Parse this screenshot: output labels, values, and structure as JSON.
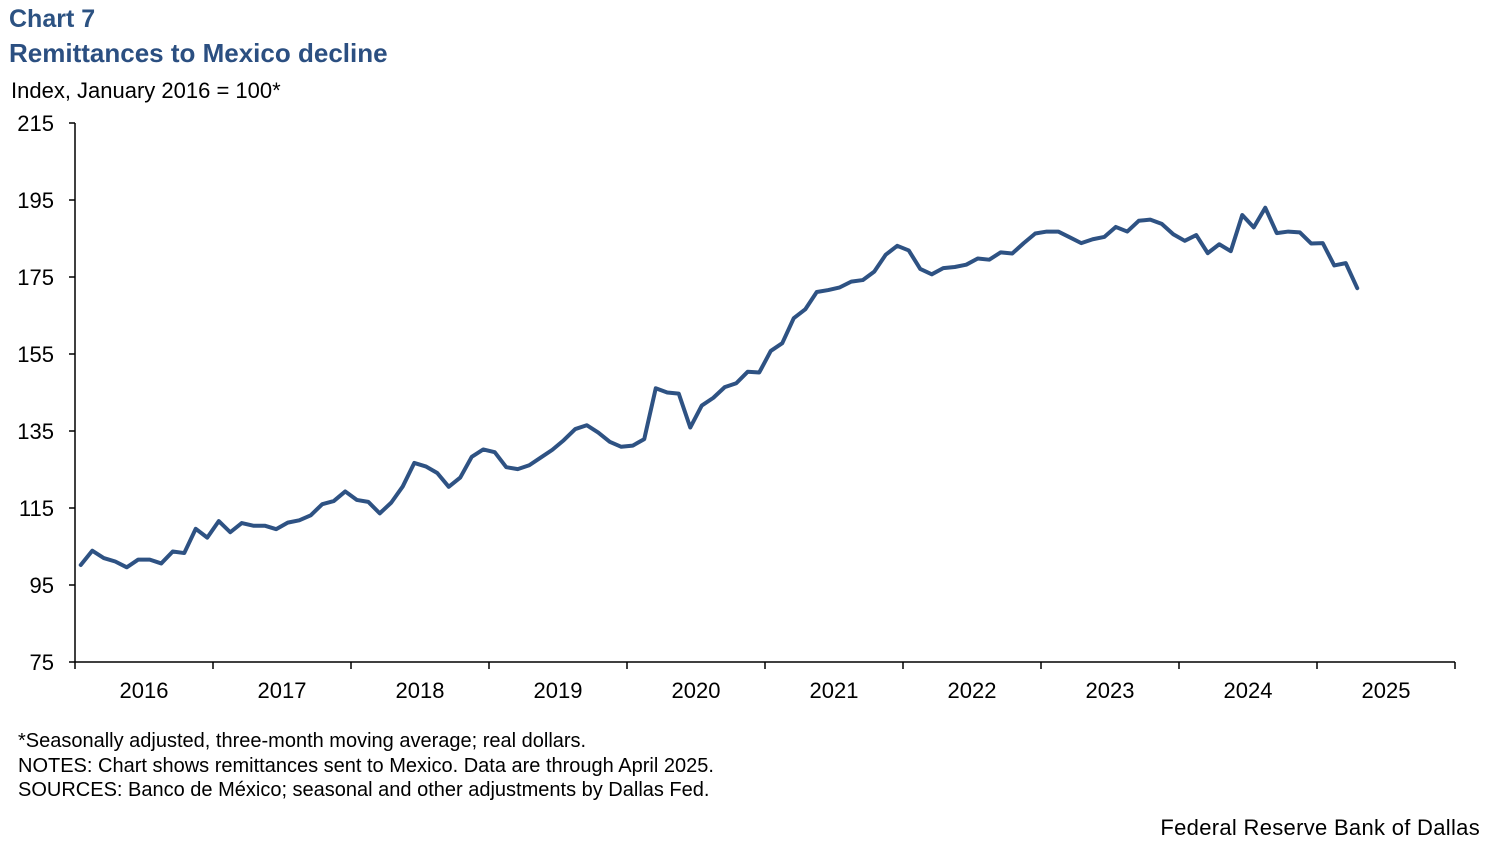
{
  "header": {
    "chart_label": "Chart 7",
    "title": "Remittances to Mexico decline",
    "y_unit": "Index, January 2016 = 100*"
  },
  "footer": {
    "note_1": "*Seasonally adjusted, three-month moving average; real dollars.",
    "note_2": "NOTES: Chart shows remittances sent to Mexico. Data are through April 2025.",
    "note_3": "SOURCES: Banco de México; seasonal and other adjustments by Dallas Fed.",
    "credit": "Federal Reserve Bank of Dallas"
  },
  "colors": {
    "line": "#2e5283",
    "axis": "#000000"
  },
  "chart_data": {
    "type": "line",
    "ylabel": "Index, January 2016 = 100*",
    "ylim": [
      75,
      215
    ],
    "yticks": [
      75,
      95,
      115,
      135,
      155,
      175,
      195,
      215
    ],
    "x_tick_labels": [
      "2016",
      "2017",
      "2018",
      "2019",
      "2020",
      "2021",
      "2022",
      "2023",
      "2024",
      "2025"
    ],
    "x_start": "2016-01",
    "x_end": "2025-04",
    "grid": false,
    "series": [
      {
        "values": [
          100.2,
          103.9,
          102.0,
          101.1,
          99.6,
          101.6,
          101.6,
          100.6,
          103.7,
          103.3,
          109.6,
          107.3,
          111.6,
          108.7,
          111.1,
          110.4,
          110.4,
          109.5,
          111.2,
          111.8,
          113.1,
          116.0,
          116.8,
          119.3,
          117.1,
          116.6,
          113.6,
          116.4,
          120.6,
          126.7,
          125.8,
          124.1,
          120.5,
          122.9,
          128.3,
          130.2,
          129.5,
          125.6,
          125.1,
          126.1,
          128.1,
          130.1,
          132.6,
          135.5,
          136.5,
          134.6,
          132.2,
          130.9,
          131.2,
          132.9,
          146.1,
          145.0,
          144.7,
          135.9,
          141.6,
          143.6,
          146.4,
          147.4,
          150.4,
          150.2,
          155.8,
          157.8,
          164.3,
          166.6,
          171.1,
          171.6,
          172.3,
          173.8,
          174.2,
          176.4,
          180.8,
          183.1,
          181.9,
          177.1,
          175.7,
          177.3,
          177.6,
          178.2,
          179.8,
          179.5,
          181.4,
          181.1,
          183.8,
          186.3,
          186.8,
          186.8,
          185.3,
          183.8,
          184.8,
          185.4,
          188.0,
          186.8,
          189.6,
          189.9,
          188.8,
          186.1,
          184.4,
          185.9,
          181.2,
          183.5,
          181.7,
          191.1,
          187.9,
          193.0,
          186.4,
          186.8,
          186.6,
          183.7,
          183.8,
          178.0,
          178.6,
          172.1
        ]
      }
    ]
  }
}
